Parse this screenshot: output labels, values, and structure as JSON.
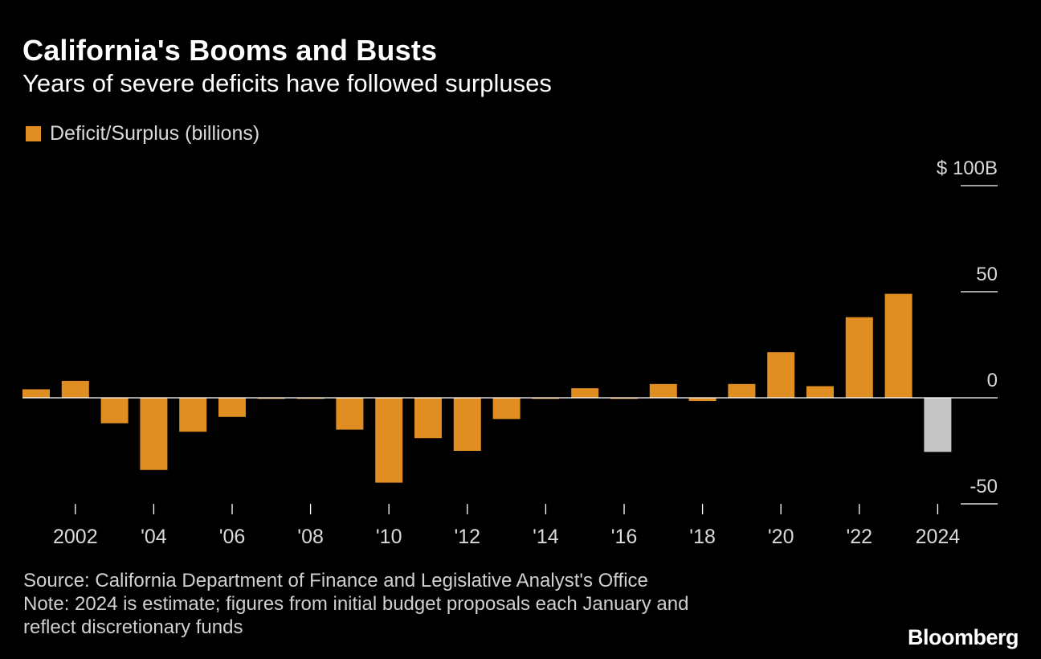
{
  "header": {
    "title": "California's Booms and Busts",
    "subtitle": "Years of severe deficits have followed surpluses"
  },
  "legend": {
    "label": "Deficit/Surplus (billions)"
  },
  "colors": {
    "bar": "#e08d22",
    "estimate_bar": "#c6c6c6",
    "axis": "#ffffff",
    "tick_text": "#d9d9d9",
    "background": "#000000"
  },
  "chart_data": {
    "type": "bar",
    "title": "California's Booms and Busts",
    "subtitle": "Years of severe deficits have followed surpluses",
    "xlabel": "",
    "ylabel": "Deficit/Surplus (billions)",
    "ylim": [
      -50,
      100
    ],
    "y_ticks": [
      {
        "value": 100,
        "label": "$ 100B"
      },
      {
        "value": 50,
        "label": "50"
      },
      {
        "value": 0,
        "label": "0"
      },
      {
        "value": -50,
        "label": "-50"
      }
    ],
    "x_ticks": [
      {
        "year": 2002,
        "label": "2002"
      },
      {
        "year": 2004,
        "label": "'04"
      },
      {
        "year": 2006,
        "label": "'06"
      },
      {
        "year": 2008,
        "label": "'08"
      },
      {
        "year": 2010,
        "label": "'10"
      },
      {
        "year": 2012,
        "label": "'12"
      },
      {
        "year": 2014,
        "label": "'14"
      },
      {
        "year": 2016,
        "label": "'16"
      },
      {
        "year": 2018,
        "label": "'18"
      },
      {
        "year": 2020,
        "label": "'20"
      },
      {
        "year": 2022,
        "label": "'22"
      },
      {
        "year": 2024,
        "label": "2024"
      }
    ],
    "grid": false,
    "legend_position": "top-left",
    "series": [
      {
        "name": "Deficit/Surplus (billions)",
        "points": [
          {
            "year": 2001,
            "value": 4
          },
          {
            "year": 2002,
            "value": 8
          },
          {
            "year": 2003,
            "value": -12
          },
          {
            "year": 2004,
            "value": -34
          },
          {
            "year": 2005,
            "value": -16
          },
          {
            "year": 2006,
            "value": -9
          },
          {
            "year": 2007,
            "value": -0.5
          },
          {
            "year": 2008,
            "value": -0.5
          },
          {
            "year": 2009,
            "value": -15
          },
          {
            "year": 2010,
            "value": -40
          },
          {
            "year": 2011,
            "value": -19
          },
          {
            "year": 2012,
            "value": -25
          },
          {
            "year": 2013,
            "value": -10
          },
          {
            "year": 2014,
            "value": -0.5
          },
          {
            "year": 2015,
            "value": 4.5
          },
          {
            "year": 2016,
            "value": -0.5
          },
          {
            "year": 2017,
            "value": 6.5
          },
          {
            "year": 2018,
            "value": -1.5
          },
          {
            "year": 2019,
            "value": 6.5
          },
          {
            "year": 2020,
            "value": 21.5
          },
          {
            "year": 2021,
            "value": 5.5
          },
          {
            "year": 2022,
            "value": 38
          },
          {
            "year": 2023,
            "value": 49
          },
          {
            "year": 2024,
            "value": -25.5,
            "estimate": true
          }
        ]
      }
    ]
  },
  "footer": {
    "source": "Source: California Department of Finance and Legislative Analyst's Office",
    "note_line1": "Note: 2024 is estimate; figures from initial budget proposals each January and",
    "note_line2": "reflect discretionary funds",
    "brand": "Bloomberg"
  }
}
